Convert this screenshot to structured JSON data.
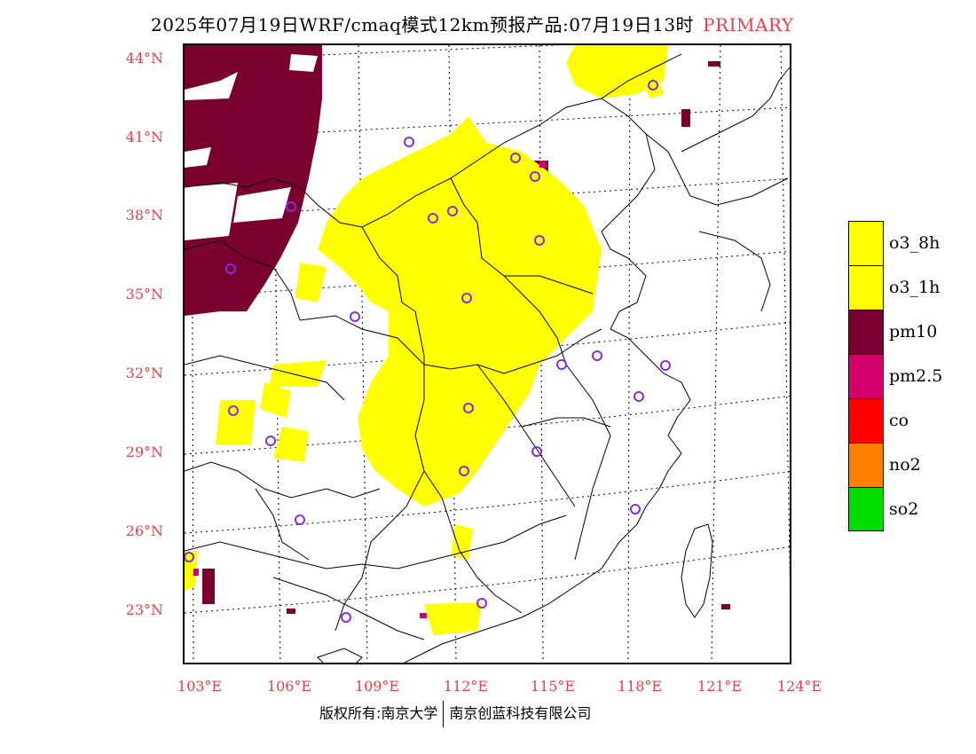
{
  "title": {
    "text": "2025年07月19日WRF/cmaq模式12km预报产品:07月19日13时",
    "tag": "PRIMARY"
  },
  "colors": {
    "o3_8h": "#ffff00",
    "o3_1h": "#ffff00",
    "pm10": "#7a0030",
    "pm25": "#d4006e",
    "co": "#ff0000",
    "no2": "#ff7f00",
    "so2": "#00dd00",
    "label": "#e8404a",
    "station": "#8a2be2"
  },
  "axes": {
    "lat_labels": [
      "44°N",
      "41°N",
      "38°N",
      "35°N",
      "32°N",
      "29°N",
      "26°N",
      "23°N"
    ],
    "lon_labels": [
      "103°E",
      "106°E",
      "109°E",
      "112°E",
      "115°E",
      "118°E",
      "121°E",
      "124°E"
    ]
  },
  "legend": [
    {
      "label": "o3_8h",
      "color": "#ffff00"
    },
    {
      "label": "o3_1h",
      "color": "#ffff00"
    },
    {
      "label": "pm10",
      "color": "#7a0030"
    },
    {
      "label": "pm2.5",
      "color": "#d4006e"
    },
    {
      "label": "co",
      "color": "#ff0000"
    },
    {
      "label": "no2",
      "color": "#ff7f00"
    },
    {
      "label": "so2",
      "color": "#00dd00"
    }
  ],
  "footer": {
    "left": "版权所有:南京大学",
    "right": "南京创蓝科技有限公司"
  }
}
